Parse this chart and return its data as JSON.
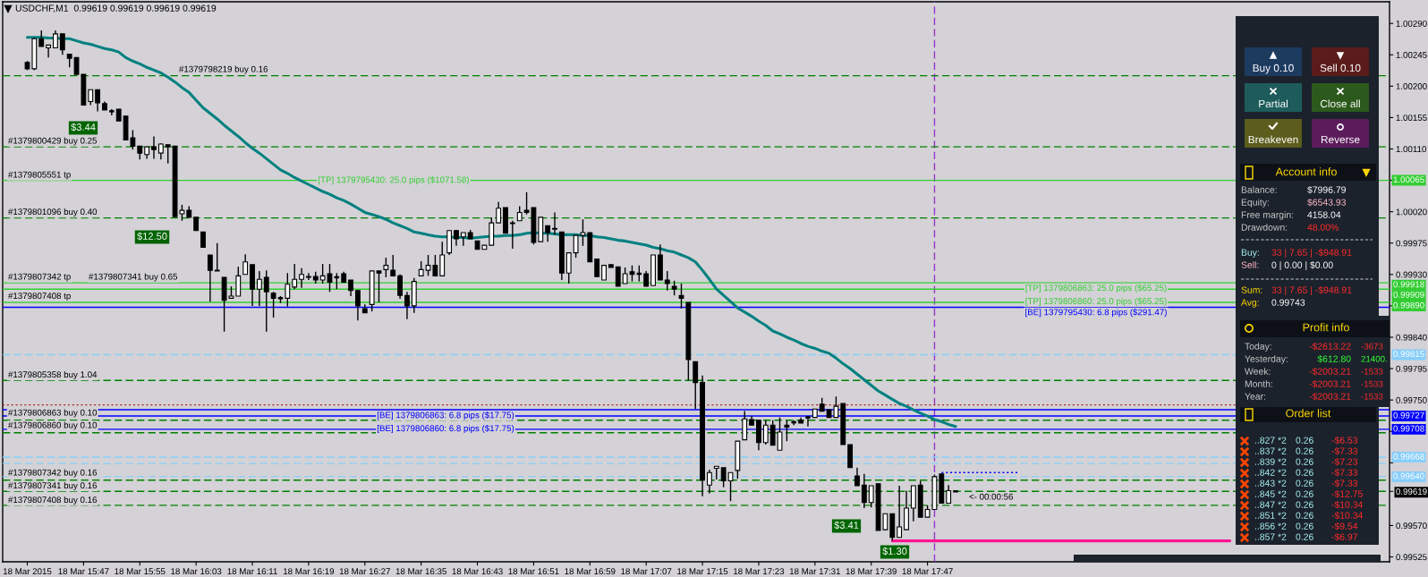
{
  "chart_data": [
    {
      "type": "candlestick",
      "title": "USDCHF,M1  0.99619 0.99619 0.99619 0.99619",
      "categories": [
        "18 Mar 2015",
        null,
        null,
        null,
        null,
        null,
        null,
        null,
        "18 Mar 15:47",
        null,
        null,
        null,
        null,
        null,
        null,
        null,
        "18 Mar 15:55",
        null,
        null,
        null,
        null,
        null,
        null,
        null,
        "18 Mar 16:03",
        null,
        null,
        null,
        null,
        null,
        null,
        null,
        "18 Mar 16:11",
        null,
        null,
        null,
        null,
        null,
        null,
        null,
        "18 Mar 16:19",
        null,
        null,
        null,
        null,
        null,
        null,
        null,
        "18 Mar 16:27",
        null,
        null,
        null,
        null,
        null,
        null,
        null,
        "18 Mar 16:35",
        null,
        null,
        null,
        null,
        null,
        null,
        null,
        "18 Mar 16:43",
        null,
        null,
        null,
        null,
        null,
        null,
        null,
        "18 Mar 16:51",
        null,
        null,
        null,
        null,
        null,
        null,
        null,
        "18 Mar 16:59",
        null,
        null,
        null,
        null,
        null,
        null,
        null,
        "18 Mar 17:07",
        null,
        null,
        null,
        null,
        null,
        null,
        null,
        "18 Mar 17:15",
        null,
        null,
        null,
        null,
        null,
        null,
        null,
        "18 Mar 17:23",
        null,
        null,
        null,
        null,
        null,
        null,
        null,
        "18 Mar 17:31",
        null,
        null,
        null,
        null,
        null,
        null,
        null,
        "18 Mar 17:39",
        null,
        null,
        null,
        null,
        null,
        null,
        null,
        "18 Mar 17:47",
        null,
        null,
        null,
        null,
        null,
        null,
        null,
        null,
        null,
        null,
        null,
        null,
        null,
        null,
        null,
        null,
        null,
        null,
        null,
        null,
        null,
        null,
        null,
        null,
        null,
        null,
        null,
        null,
        null,
        null,
        null,
        null,
        null,
        null,
        null,
        null,
        null,
        null,
        null,
        null,
        null,
        null,
        null,
        null,
        null,
        null,
        null,
        null,
        null,
        null,
        null,
        null,
        null,
        null,
        null,
        null,
        null,
        null,
        null,
        null,
        null,
        null,
        null,
        null,
        null
      ],
      "ohlc": [
        [
          1.00234,
          1.00236,
          1.00223,
          1.00225
        ],
        [
          1.00225,
          1.00269,
          1.00223,
          1.00268
        ],
        [
          1.00268,
          1.0028,
          1.00257,
          1.00257
        ],
        [
          1.00255,
          1.00259,
          1.00241,
          1.00259
        ],
        [
          1.00255,
          1.0028,
          1.00255,
          1.00275
        ],
        [
          1.00275,
          1.00275,
          1.00245,
          1.00252
        ],
        [
          1.00246,
          1.00246,
          1.00227,
          1.0024
        ],
        [
          1.00241,
          1.00241,
          1.00217,
          1.00217
        ],
        [
          1.00217,
          1.00217,
          1.00173,
          1.00173
        ],
        [
          1.00178,
          1.00195,
          1.00173,
          1.00195
        ],
        [
          1.00195,
          1.00195,
          1.00164,
          1.00176
        ],
        [
          1.00175,
          1.00178,
          1.00166,
          1.00166
        ],
        [
          1.00164,
          1.00167,
          1.00158,
          1.00164
        ],
        [
          1.00167,
          1.00167,
          1.0015,
          1.0015
        ],
        [
          1.00157,
          1.00157,
          1.00123,
          1.00123
        ],
        [
          1.00126,
          1.00137,
          1.00109,
          1.00114
        ],
        [
          1.00114,
          1.00114,
          1.00095,
          1.00104
        ],
        [
          1.00102,
          1.00113,
          1.00096,
          1.00113
        ],
        [
          1.00113,
          1.00128,
          1.00096,
          1.00109
        ],
        [
          1.00104,
          1.00118,
          1.00095,
          1.00117
        ],
        [
          1.00116,
          1.00116,
          1.00089,
          1.00113
        ],
        [
          1.00114,
          1.00114,
          1.00012,
          1.00013
        ],
        [
          1.00017,
          1.0003,
          1.00007,
          1.00022
        ],
        [
          1.00022,
          1.00028,
          1.00012,
          1.00012
        ],
        [
          1.00012,
          1.00012,
          0.99993,
          0.99993
        ],
        [
          0.99991,
          0.99991,
          0.99969,
          0.99969
        ],
        [
          0.99958,
          0.99958,
          0.99891,
          0.99936
        ],
        [
          0.99936,
          0.99975,
          0.99935,
          0.99935
        ],
        [
          0.99926,
          0.99926,
          0.99848,
          0.99893
        ],
        [
          0.99896,
          0.99913,
          0.99896,
          0.99899
        ],
        [
          0.99899,
          0.99941,
          0.99899,
          0.99928
        ],
        [
          0.9993,
          0.99959,
          0.9993,
          0.99948
        ],
        [
          0.99944,
          0.99944,
          0.99885,
          0.99909
        ],
        [
          0.99909,
          0.99935,
          0.99885,
          0.99923
        ],
        [
          0.99926,
          0.99936,
          0.99848,
          0.99905
        ],
        [
          0.99903,
          0.99905,
          0.99868,
          0.99896
        ],
        [
          0.99896,
          0.99899,
          0.99889,
          0.99896
        ],
        [
          0.99896,
          0.99932,
          0.99884,
          0.99916
        ],
        [
          0.99912,
          0.99945,
          0.99909,
          0.99923
        ],
        [
          0.99923,
          0.99939,
          0.99911,
          0.9993
        ],
        [
          0.99927,
          0.99932,
          0.99922,
          0.99926
        ],
        [
          0.99927,
          0.99934,
          0.99917,
          0.99922
        ],
        [
          0.99922,
          0.99945,
          0.99917,
          0.99928
        ],
        [
          0.99931,
          0.99945,
          0.99905,
          0.99919
        ],
        [
          0.99926,
          0.99932,
          0.99909,
          0.99926
        ],
        [
          0.99931,
          0.99934,
          0.99918,
          0.99919
        ],
        [
          0.99922,
          0.99922,
          0.99899,
          0.99907
        ],
        [
          0.99907,
          0.99907,
          0.99864,
          0.99885
        ],
        [
          0.99881,
          0.99887,
          0.99875,
          0.99875
        ],
        [
          0.99887,
          0.99935,
          0.99877,
          0.99935
        ],
        [
          0.99935,
          0.99935,
          0.9989,
          0.99932
        ],
        [
          0.99937,
          0.99954,
          0.99926,
          0.99943
        ],
        [
          0.99936,
          0.99958,
          0.99928,
          0.99928
        ],
        [
          0.99928,
          0.9993,
          0.99895,
          0.999
        ],
        [
          0.999,
          0.99905,
          0.99866,
          0.99885
        ],
        [
          0.99885,
          0.99925,
          0.99875,
          0.9992
        ],
        [
          0.99928,
          0.99949,
          0.99928,
          0.99937
        ],
        [
          0.99936,
          0.99958,
          0.99928,
          0.99943
        ],
        [
          0.99943,
          0.99958,
          0.99928,
          0.99928
        ],
        [
          0.99928,
          0.99977,
          0.99928,
          0.99958
        ],
        [
          0.99961,
          0.99994,
          0.99958,
          0.99993
        ],
        [
          0.99993,
          0.99994,
          0.99971,
          0.99981
        ],
        [
          0.99984,
          0.9999,
          0.99971,
          0.9999
        ],
        [
          0.9999,
          0.99994,
          0.99981,
          0.99981
        ],
        [
          0.99978,
          0.99978,
          0.99966,
          0.99966
        ],
        [
          0.99966,
          0.99972,
          0.99966,
          0.99972
        ],
        [
          0.99972,
          1.00012,
          0.99972,
          1.00004
        ],
        [
          1.00004,
          1.00034,
          1.00004,
          1.00025
        ],
        [
          1.00026,
          1.00026,
          0.99989,
          0.99989
        ],
        [
          1.00003,
          1.00007,
          0.99967,
          1.00004
        ],
        [
          1.00007,
          1.00028,
          1.00007,
          1.00019
        ],
        [
          1.00022,
          1.00048,
          1.00016,
          1.00019
        ],
        [
          1.00026,
          1.00026,
          0.99973,
          0.99976
        ],
        [
          0.99977,
          1.00012,
          0.99977,
          1.00012
        ],
        [
          1.0,
          1.0,
          0.99977,
          0.9999
        ],
        [
          0.99996,
          1.00019,
          0.99987,
          0.99995
        ],
        [
          0.99991,
          0.99991,
          0.99922,
          0.99932
        ],
        [
          0.99932,
          0.99961,
          0.99917,
          0.99961
        ],
        [
          0.99961,
          0.99986,
          0.99954,
          0.99986
        ],
        [
          0.99986,
          1.00009,
          0.99971,
          0.9999
        ],
        [
          0.9999,
          0.9999,
          0.99948,
          0.99948
        ],
        [
          0.99952,
          0.99952,
          0.99927,
          0.99927
        ],
        [
          0.99922,
          0.99943,
          0.99922,
          0.99943
        ],
        [
          0.99944,
          0.99944,
          0.9994,
          0.9994
        ],
        [
          0.99941,
          0.99941,
          0.99913,
          0.99913
        ],
        [
          0.99917,
          0.9994,
          0.99917,
          0.99931
        ],
        [
          0.99934,
          0.99943,
          0.9992,
          0.9993
        ],
        [
          0.99931,
          0.99943,
          0.9992,
          0.99931
        ],
        [
          0.99931,
          0.99935,
          0.99913,
          0.99913
        ],
        [
          0.99914,
          0.99958,
          0.99914,
          0.99958
        ],
        [
          0.99958,
          0.99973,
          0.99922,
          0.99922
        ],
        [
          0.99922,
          0.99935,
          0.99907,
          0.99917
        ],
        [
          0.99913,
          0.99921,
          0.999,
          0.99909
        ],
        [
          0.999,
          0.99917,
          0.99881,
          0.99896
        ],
        [
          0.9989,
          0.9989,
          0.99778,
          0.99808
        ],
        [
          0.99805,
          0.99805,
          0.99737,
          0.99775
        ],
        [
          0.99775,
          0.99785,
          0.99612,
          0.99635
        ],
        [
          0.99628,
          0.9965,
          0.99616,
          0.99646
        ],
        [
          0.99652,
          0.99655,
          0.99636,
          0.99655
        ],
        [
          0.99653,
          0.99653,
          0.99625,
          0.99634
        ],
        [
          0.99634,
          0.99646,
          0.99605,
          0.99646
        ],
        [
          0.99649,
          0.99691,
          0.99637,
          0.99691
        ],
        [
          0.99693,
          0.99734,
          0.99693,
          0.99723
        ],
        [
          0.99722,
          0.99727,
          0.99714,
          0.99714
        ],
        [
          0.99721,
          0.99721,
          0.99678,
          0.99689
        ],
        [
          0.99689,
          0.99721,
          0.99686,
          0.99714
        ],
        [
          0.99714,
          0.99721,
          0.99685,
          0.99685
        ],
        [
          0.99678,
          0.99725,
          0.99678,
          0.99704
        ],
        [
          0.99714,
          0.99721,
          0.99691,
          0.99711
        ],
        [
          0.99718,
          0.99721,
          0.99714,
          0.99718
        ],
        [
          0.99721,
          0.99725,
          0.99717,
          0.99717
        ],
        [
          0.99725,
          0.99727,
          0.99712,
          0.99725
        ],
        [
          0.99725,
          0.99737,
          0.99725,
          0.99737
        ],
        [
          0.99744,
          0.99753,
          0.99734,
          0.99734
        ],
        [
          0.99736,
          0.99736,
          0.99725,
          0.99725
        ],
        [
          0.99725,
          0.99755,
          0.99725,
          0.99741
        ],
        [
          0.99745,
          0.99745,
          0.99686,
          0.99686
        ],
        [
          0.99686,
          0.99686,
          0.99653,
          0.99653
        ],
        [
          0.99641,
          0.99653,
          0.99627,
          0.99627
        ],
        [
          0.99628,
          0.99644,
          0.99595,
          0.99603
        ],
        [
          0.99603,
          0.99627,
          0.99596,
          0.99627
        ],
        [
          0.9963,
          0.9963,
          0.99563,
          0.99563
        ],
        [
          0.99564,
          0.99587,
          0.99564,
          0.99587
        ],
        [
          0.99587,
          0.99587,
          0.99548,
          0.99553
        ],
        [
          0.99553,
          0.99627,
          0.99553,
          0.99568
        ],
        [
          0.99564,
          0.9962,
          0.99564,
          0.99595
        ],
        [
          0.99595,
          0.99627,
          0.99576,
          0.99627
        ],
        [
          0.99628,
          0.99634,
          0.99582,
          0.99582
        ],
        [
          0.99582,
          0.99599,
          0.99582,
          0.99593
        ],
        [
          0.99593,
          0.99643,
          0.99593,
          0.9964
        ],
        [
          0.99644,
          0.99644,
          0.99602,
          0.99602
        ],
        [
          0.99602,
          0.99628,
          0.99602,
          0.9962
        ],
        [
          0.99619,
          0.99619,
          0.99619,
          0.99619
        ],
        null,
        null,
        null,
        null,
        null,
        null,
        null,
        null,
        null,
        null,
        null,
        null,
        null,
        null,
        null,
        null,
        null,
        null,
        null,
        null,
        null,
        null,
        null,
        null,
        null,
        null,
        null,
        null,
        null,
        null,
        null,
        null,
        null,
        null,
        null,
        null,
        null,
        null,
        null,
        null,
        null,
        null,
        null,
        null,
        null,
        null,
        null,
        null,
        null,
        null,
        null,
        null,
        null,
        null,
        null,
        null,
        null,
        null,
        null,
        null,
        null
      ],
      "series": [
        {
          "type": "line",
          "color": "#008080",
          "values": [
            1.0027,
            1.0027,
            1.0027,
            1.00269,
            1.00269,
            1.00268,
            1.00268,
            1.00265,
            1.00262,
            1.0026,
            1.00257,
            1.00254,
            1.00252,
            1.00249,
            1.00241,
            1.00236,
            1.00232,
            1.00227,
            1.00223,
            1.00219,
            1.00213,
            1.00206,
            1.00198,
            1.00191,
            1.0018,
            1.00169,
            1.00161,
            1.00153,
            1.00144,
            1.00136,
            1.00128,
            1.00119,
            1.00111,
            1.00104,
            1.00096,
            1.00088,
            1.0008,
            1.00075,
            1.00069,
            1.00064,
            1.00059,
            1.00054,
            1.00049,
            1.00045,
            1.0004,
            1.00036,
            1.00031,
            1.00025,
            1.00019,
            1.00016,
            1.00013,
            1.00009,
            1.00004,
            1.0,
            0.99996,
            0.99991,
            0.99989,
            0.99987,
            0.99985,
            0.99984,
            0.99984,
            0.99983,
            0.99983,
            0.99982,
            0.99983,
            0.99984,
            0.99985,
            0.99985,
            0.99986,
            0.99986,
            0.99987,
            0.99989,
            0.9999,
            0.99989,
            0.99989,
            0.99988,
            0.99987,
            0.99987,
            0.99987,
            0.99986,
            0.99986,
            0.99984,
            0.99983,
            0.99981,
            0.99979,
            0.99978,
            0.99976,
            0.99974,
            0.99972,
            0.99969,
            0.99967,
            0.99964,
            0.99962,
            0.99958,
            0.99954,
            0.99948,
            0.99936,
            0.99923,
            0.99909,
            0.999,
            0.99891,
            0.99882,
            0.99876,
            0.9987,
            0.99863,
            0.99857,
            0.99849,
            0.99845,
            0.9984,
            0.99836,
            0.99831,
            0.99827,
            0.99824,
            0.9982,
            0.99817,
            0.9981,
            0.99802,
            0.99795,
            0.99787,
            0.99779,
            0.99771,
            0.99763,
            0.99757,
            0.99751,
            0.99745,
            0.99741,
            0.99736,
            0.99731,
            0.99727,
            0.99722,
            0.99719,
            0.99715,
            0.99712,
            null,
            null,
            null,
            null,
            null,
            null,
            null,
            null,
            null,
            null,
            null,
            null,
            null,
            null,
            null,
            null,
            null,
            null,
            null,
            null,
            null,
            null,
            null,
            null,
            null,
            null,
            null,
            null,
            null,
            null,
            null,
            null,
            null,
            null,
            null,
            null,
            null,
            null,
            null,
            null,
            null,
            null,
            null,
            null,
            null,
            null,
            null,
            null,
            null,
            null,
            null,
            null,
            null,
            null,
            null,
            null,
            null,
            null,
            null,
            null,
            null
          ]
        },
        {
          "type": "line",
          "color": "#ff1493",
          "values": [
            null,
            null,
            null,
            null,
            null,
            null,
            null,
            null,
            null,
            null,
            null,
            null,
            null,
            null,
            null,
            null,
            null,
            null,
            null,
            null,
            null,
            null,
            null,
            null,
            null,
            null,
            null,
            null,
            null,
            null,
            null,
            null,
            null,
            null,
            null,
            null,
            null,
            null,
            null,
            null,
            null,
            null,
            null,
            null,
            null,
            null,
            null,
            null,
            null,
            null,
            null,
            null,
            null,
            null,
            null,
            null,
            null,
            null,
            null,
            null,
            null,
            null,
            null,
            null,
            null,
            null,
            null,
            null,
            null,
            null,
            null,
            null,
            null,
            null,
            null,
            null,
            null,
            null,
            null,
            null,
            null,
            null,
            null,
            null,
            null,
            null,
            null,
            null,
            null,
            null,
            null,
            null,
            null,
            null,
            null,
            null,
            null,
            null,
            null,
            null,
            null,
            null,
            null,
            null,
            null,
            null,
            null,
            null,
            null,
            null,
            null,
            null,
            null,
            null,
            null,
            null,
            null,
            null,
            null,
            null,
            null,
            null,
            null,
            0.99548,
            0.99548,
            0.99548,
            0.99548,
            0.99548,
            0.99548,
            0.99548,
            0.99548,
            0.99548,
            0.99548,
            0.99548,
            0.99548,
            0.99548,
            0.99548,
            0.99548,
            0.99548,
            0.99548,
            0.99548,
            0.99548,
            0.99548,
            0.99548,
            0.99548,
            0.99548,
            0.99548,
            0.99548,
            0.99548,
            0.99548,
            0.99548,
            0.99548,
            0.99548,
            0.99548,
            0.99548,
            0.99548,
            0.99548,
            0.99548,
            0.99548,
            0.99548,
            0.99548,
            0.99548,
            0.99548,
            0.99548,
            0.99548,
            0.99548,
            0.99548,
            0.99548,
            0.99548,
            0.99548,
            0.99548,
            0.99548,
            null,
            null,
            null,
            null,
            null,
            null,
            null,
            null,
            null,
            null,
            null,
            null,
            null,
            null,
            null,
            null,
            null,
            null,
            null,
            null,
            null,
            null
          ]
        },
        {
          "type": "line",
          "color": "#0000ff",
          "line_style": "dotted",
          "values": [
            null,
            null,
            null,
            null,
            null,
            null,
            null,
            null,
            null,
            null,
            null,
            null,
            null,
            null,
            null,
            null,
            null,
            null,
            null,
            null,
            null,
            null,
            null,
            null,
            null,
            null,
            null,
            null,
            null,
            null,
            null,
            null,
            null,
            null,
            null,
            null,
            null,
            null,
            null,
            null,
            null,
            null,
            null,
            null,
            null,
            null,
            null,
            null,
            null,
            null,
            null,
            null,
            null,
            null,
            null,
            null,
            null,
            null,
            null,
            null,
            null,
            null,
            null,
            null,
            null,
            null,
            null,
            null,
            null,
            null,
            null,
            null,
            null,
            null,
            null,
            null,
            null,
            null,
            null,
            null,
            null,
            null,
            null,
            null,
            null,
            null,
            null,
            null,
            null,
            null,
            null,
            null,
            null,
            null,
            null,
            null,
            null,
            null,
            null,
            null,
            null,
            null,
            null,
            null,
            null,
            null,
            null,
            null,
            null,
            null,
            null,
            null,
            null,
            null,
            null,
            null,
            null,
            null,
            null,
            null,
            null,
            null,
            null,
            null,
            null,
            null,
            null,
            null,
            null,
            null,
            0.99646,
            0.99646,
            0.99646,
            0.99646,
            0.99646,
            0.99646,
            0.99646,
            0.99646,
            0.99646,
            0.99646,
            0.99646,
            0.99646,
            null,
            null,
            null,
            null,
            null,
            null,
            null,
            null,
            null,
            null,
            null,
            null,
            null,
            null,
            null,
            null,
            null,
            null,
            null,
            null,
            null,
            null,
            null,
            null,
            null,
            null,
            null,
            null,
            null,
            null,
            null,
            null,
            null,
            null,
            null,
            null,
            null,
            null,
            null,
            null,
            null,
            null,
            null,
            null,
            null,
            null,
            null,
            null,
            null,
            null,
            null,
            null
          ]
        }
      ],
      "ylim": [
        0.99518,
        1.00321
      ],
      "yticks": [
        {
          "value": 1.0029,
          "label": "1.00290"
        },
        {
          "value": 1.00245,
          "label": "1.00245"
        },
        {
          "value": 1.002,
          "label": "1.00200"
        },
        {
          "value": 1.00155,
          "label": "1.00155"
        },
        {
          "value": 1.0011,
          "label": "1.00110"
        },
        {
          "value": 1.00065,
          "label": null
        },
        {
          "value": 1.0002,
          "label": "1.00020"
        },
        {
          "value": 0.99975,
          "label": "0.99975"
        },
        {
          "value": 0.9993,
          "label": "0.99930"
        },
        {
          "value": 0.99885,
          "label": null
        },
        {
          "value": 0.9984,
          "label": "0.99840"
        },
        {
          "value": 0.99795,
          "label": "0.99795"
        },
        {
          "value": 0.9975,
          "label": "0.99750"
        },
        {
          "value": 0.99705,
          "label": null
        },
        {
          "value": 0.9966,
          "label": null
        },
        {
          "value": 0.99619,
          "label": "0.99619"
        },
        {
          "value": 0.9957,
          "label": "0.99570"
        },
        {
          "value": 0.99525,
          "label": "0.99525"
        }
      ],
      "ref_lines": [
        {
          "axis": "y",
          "value": 1.00215,
          "color": "#008000",
          "line_style": "dashed"
        },
        {
          "axis": "y",
          "value": 1.00113,
          "color": "#008000",
          "line_style": "dashed"
        },
        {
          "axis": "y",
          "value": 1.00065,
          "label": "1.00065",
          "color": "#32cd32",
          "line_style": "solid"
        },
        {
          "axis": "y",
          "value": 1.00011,
          "color": "#008000",
          "line_style": "dashed"
        },
        {
          "axis": "y",
          "value": 0.99918,
          "label": "0.99918",
          "color": "#32cd32",
          "line_style": "solid"
        },
        {
          "axis": "y",
          "value": 0.99909,
          "label": "0.99909",
          "color": "#32cd32",
          "line_style": "solid"
        },
        {
          "axis": "y",
          "value": 0.9989,
          "label": "0.99890",
          "color": "#32cd32",
          "line_style": "solid"
        },
        {
          "axis": "y",
          "value": 0.99883,
          "color": "#0000ff",
          "line_style": "solid"
        },
        {
          "axis": "y",
          "value": 0.99815,
          "label": "0.99815",
          "color": "#87cefa",
          "line_style": "dashed"
        },
        {
          "axis": "y",
          "value": 0.99778,
          "color": "#008000",
          "line_style": "dashed"
        },
        {
          "axis": "y",
          "value": 0.99743,
          "color": "#b22222",
          "line_style": "dotted"
        },
        {
          "axis": "y",
          "value": 0.99736,
          "color": "#0000ff",
          "line_style": "solid"
        },
        {
          "axis": "y",
          "value": 0.99727,
          "label": "0.99727",
          "color": "#0000ff",
          "line_style": "solid"
        },
        {
          "axis": "y",
          "value": 0.99721,
          "color": "#008000",
          "line_style": "dashed"
        },
        {
          "axis": "y",
          "value": 0.99708,
          "label": "0.99708",
          "color": "#0000ff",
          "line_style": "solid"
        },
        {
          "axis": "y",
          "value": 0.99703,
          "color": "#008000",
          "line_style": "dashed"
        },
        {
          "axis": "y",
          "value": 0.99668,
          "label": "0.99668",
          "color": "#87cefa",
          "line_style": "dashed"
        },
        {
          "axis": "y",
          "value": 0.99659,
          "color": "#87cefa",
          "line_style": "dashed"
        },
        {
          "axis": "y",
          "value": 0.9964,
          "label": "0.99640",
          "color": "#87cefa",
          "line_style": "dashed"
        },
        {
          "axis": "y",
          "value": 0.99635,
          "color": "#008000",
          "line_style": "dashed"
        },
        {
          "axis": "y",
          "value": 0.99619,
          "color": "#008000",
          "line_style": "dashed"
        },
        {
          "axis": "y",
          "value": 0.99599,
          "color": "#008000",
          "line_style": "dashed"
        }
      ],
      "annotations": [
        "#1379798219 buy 0.16",
        "#1379800429 buy 0.25",
        "#1379805551 tp",
        "#1379801096 buy 0.40",
        "#1379807342 tp",
        "#1379807341 buy 0.65",
        "#1379807408 tp",
        "#1379805358 buy 1.04",
        "#1379806863 buy 0.10",
        "#1379806860 buy 0.10",
        "#1379807342 buy 0.16",
        "#1379807341 buy 0.16",
        "#1379807408 buy 0.16",
        "[TP] 1379795430: 25.0 pips ($1071.58)",
        "[TP] 1379806863: 25.0 pips ($65.25)",
        "[TP] 1379806860: 25.0 pips ($65.25)",
        "[BE] 1379795430: 6.8 pips ($291.47)",
        "[BE] 1379806863: 6.8 pips ($17.75)",
        "[BE] 1379806860: 6.8 pips ($17.75)",
        "$3.44",
        "$12.50",
        "$1.30",
        "$3.41",
        "<- 00:00:56"
      ]
    },
    {
      "type": "other",
      "annotations": [
        "Buy 0.10",
        "Sell 0.10",
        "Partial",
        "Close all",
        "Breakeven",
        "Reverse",
        "Account info",
        "Balance:",
        "$7996.79",
        "Equity:",
        "$6543.93",
        "Free margin:",
        "4158.04",
        "Drawdown:",
        "48.00%",
        "Buy:",
        "33 | 7.65 | -$948.91",
        "Sell:",
        "0 | 0.00 | $0.00",
        "Sum:",
        "33 | 7.65 | -$948.91",
        "Avg:",
        "0.99743",
        "Profit info",
        "Today:",
        "-$2613.22",
        "-3673",
        "Yesterday:",
        "$612.80",
        "21400.",
        "Week:",
        "-$2003.21",
        "-1533",
        "Month:",
        "-$2003.21",
        "-1533",
        "Year:",
        "-$2003.21",
        "-1533",
        "Order list",
        "..827 *2",
        "0.26",
        "-$6.53",
        "..837 *2",
        "0.26",
        "-$7.33",
        "..839 *2",
        "0.26",
        "-$7.23",
        "..842 *2",
        "0.26",
        "-$7.33",
        "..843 *2",
        "0.26",
        "-$7.33",
        "..845 *2",
        "0.26",
        "-$12.75",
        "..847 *2",
        "0.26",
        "-$10.34",
        "..851 *2",
        "0.26",
        "-$10.34",
        "..856 *2",
        "0.26",
        "-$9.54",
        "..857 *2",
        "0.26",
        "-$6.97"
      ]
    }
  ]
}
